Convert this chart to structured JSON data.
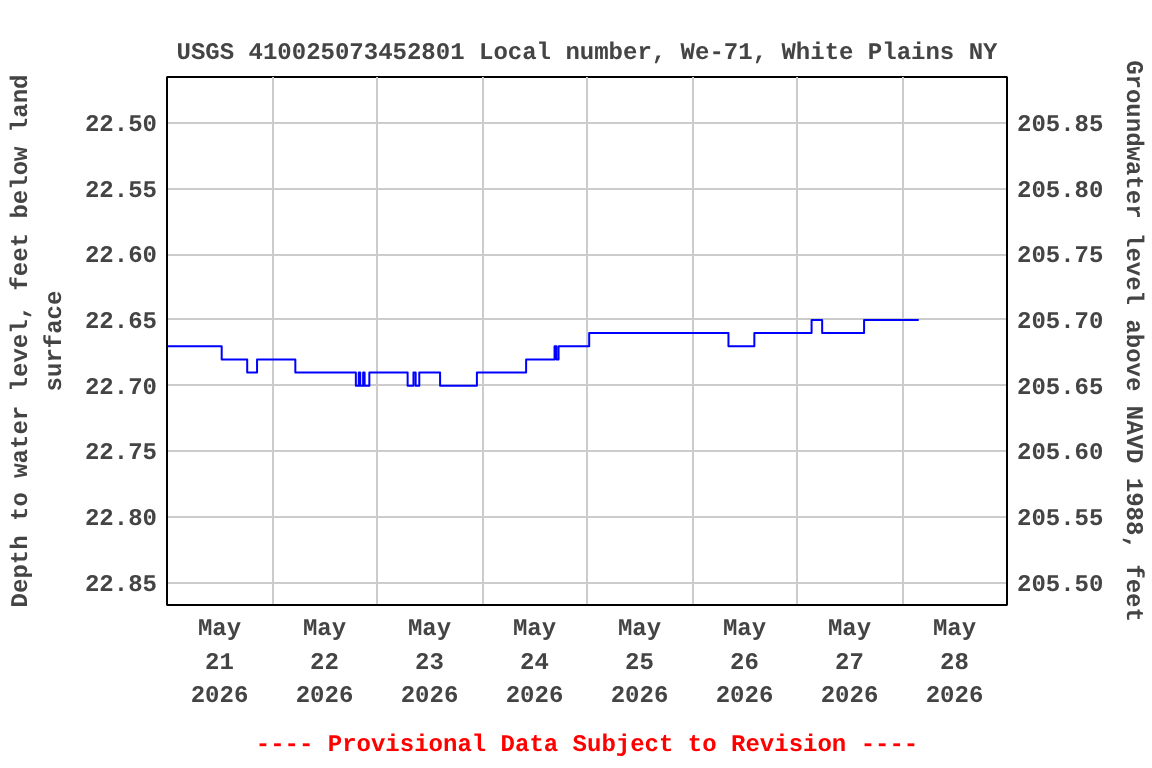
{
  "chart_data": {
    "type": "step",
    "title": "USGS 410025073452801 Local number, We-71, White Plains NY",
    "ylabel": "Depth to water level, feet below land\nsurface",
    "y2label": "Groundwater level above NAVD 1988, feet",
    "x": [
      "2026-05-21T00:00",
      "2026-05-21T12:30",
      "2026-05-21T18:20",
      "2026-05-21T20:35",
      "2026-05-22T05:20",
      "2026-05-22T19:10",
      "2026-05-22T19:50",
      "2026-05-22T20:10",
      "2026-05-22T20:50",
      "2026-05-22T21:10",
      "2026-05-22T22:15",
      "2026-05-23T07:00",
      "2026-05-23T08:20",
      "2026-05-23T08:50",
      "2026-05-23T09:40",
      "2026-05-23T14:25",
      "2026-05-23T22:50",
      "2026-05-24T10:05",
      "2026-05-24T16:35",
      "2026-05-24T17:00",
      "2026-05-24T17:30",
      "2026-05-25T00:30",
      "2026-05-26T08:20",
      "2026-05-26T14:15",
      "2026-05-27T03:20",
      "2026-05-27T05:45",
      "2026-05-27T15:20",
      "2026-05-28T03:50"
    ],
    "series": [
      {
        "color": "#0000ff",
        "values": [
          22.67,
          22.68,
          22.69,
          22.68,
          22.69,
          22.7,
          22.69,
          22.7,
          22.69,
          22.7,
          22.69,
          22.7,
          22.69,
          22.7,
          22.69,
          22.7,
          22.69,
          22.68,
          22.67,
          22.68,
          22.67,
          22.66,
          22.67,
          22.66,
          22.65,
          22.66,
          22.65,
          22.65
        ]
      }
    ],
    "xlim": [
      "2026-05-21T00:00",
      "2026-05-29T00:00"
    ],
    "xticks": [
      {
        "value": "2026-05-21T12:00",
        "label": "May\n21\n2026"
      },
      {
        "value": "2026-05-22T12:00",
        "label": "May\n22\n2026"
      },
      {
        "value": "2026-05-23T12:00",
        "label": "May\n23\n2026"
      },
      {
        "value": "2026-05-24T12:00",
        "label": "May\n24\n2026"
      },
      {
        "value": "2026-05-25T12:00",
        "label": "May\n25\n2026"
      },
      {
        "value": "2026-05-26T12:00",
        "label": "May\n26\n2026"
      },
      {
        "value": "2026-05-27T12:00",
        "label": "May\n27\n2026"
      },
      {
        "value": "2026-05-28T12:00",
        "label": "May\n28\n2026"
      },
      {
        "value": "2026-05-22T00:00",
        "label": null
      },
      {
        "value": "2026-05-23T00:00",
        "label": null
      },
      {
        "value": "2026-05-24T00:00",
        "label": null
      },
      {
        "value": "2026-05-25T00:00",
        "label": null
      },
      {
        "value": "2026-05-26T00:00",
        "label": null
      },
      {
        "value": "2026-05-27T00:00",
        "label": null
      },
      {
        "value": "2026-05-28T00:00",
        "label": null
      }
    ],
    "ylim": [
      22.867,
      22.465
    ],
    "yticks": [
      {
        "value": 22.5,
        "label": "22.50"
      },
      {
        "value": 22.55,
        "label": "22.55"
      },
      {
        "value": 22.6,
        "label": "22.60"
      },
      {
        "value": 22.65,
        "label": "22.65"
      },
      {
        "value": 22.7,
        "label": "22.70"
      },
      {
        "value": 22.75,
        "label": "22.75"
      },
      {
        "value": 22.8,
        "label": "22.80"
      },
      {
        "value": 22.85,
        "label": "22.85"
      }
    ],
    "y2lim": [
      205.483,
      205.885
    ],
    "y2ticks": [
      {
        "value": 205.5,
        "label": "205.50"
      },
      {
        "value": 205.55,
        "label": "205.55"
      },
      {
        "value": 205.6,
        "label": "205.60"
      },
      {
        "value": 205.65,
        "label": "205.65"
      },
      {
        "value": 205.7,
        "label": "205.70"
      },
      {
        "value": 205.75,
        "label": "205.75"
      },
      {
        "value": 205.8,
        "label": "205.80"
      },
      {
        "value": 205.85,
        "label": "205.85"
      }
    ],
    "grid": true,
    "annotations": [
      "---- Provisional Data Subject to Revision ----"
    ]
  }
}
